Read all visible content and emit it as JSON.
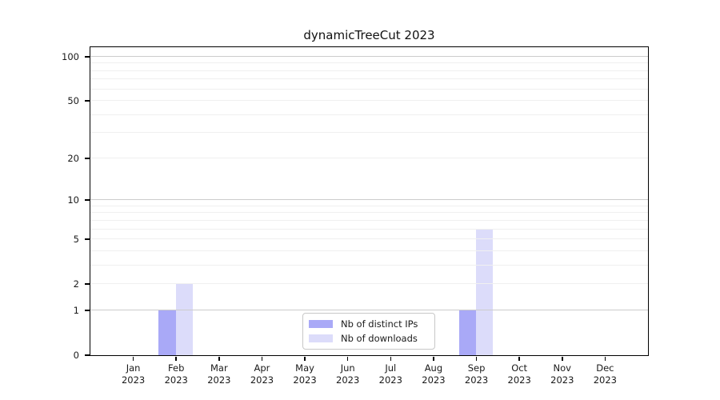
{
  "title": "dynamicTreeCut 2023",
  "chart_data": {
    "type": "bar",
    "title": "dynamicTreeCut 2023",
    "y_scale": "log1p",
    "ylim": [
      0,
      116
    ],
    "y_ticks": [
      0,
      1,
      2,
      5,
      10,
      20,
      50,
      100
    ],
    "major_gridlines": [
      1,
      10,
      100
    ],
    "minor_gridlines": [
      2,
      3,
      4,
      5,
      6,
      7,
      8,
      9,
      20,
      30,
      40,
      50,
      60,
      70,
      80,
      90
    ],
    "x_tick_months": [
      "Jan",
      "Feb",
      "Mar",
      "Apr",
      "May",
      "Jun",
      "Jul",
      "Aug",
      "Sep",
      "Oct",
      "Nov",
      "Dec"
    ],
    "x_tick_year": "2023",
    "series": [
      {
        "name": "Nb of distinct IPs",
        "color": "#a9a9f7",
        "values": [
          0,
          1,
          0,
          0,
          0,
          0,
          0,
          0,
          1,
          0,
          0,
          0
        ]
      },
      {
        "name": "Nb of downloads",
        "color": "#dcdcfa",
        "values": [
          0,
          2,
          0,
          0,
          0,
          0,
          0,
          0,
          6,
          0,
          0,
          0
        ]
      }
    ],
    "legend_position": "lower center",
    "grid": true,
    "colors": {
      "major_grid": "#cccccc",
      "minor_grid": "#f0f0f0",
      "axis": "#000000",
      "legend_border": "#c8c8c8"
    }
  }
}
